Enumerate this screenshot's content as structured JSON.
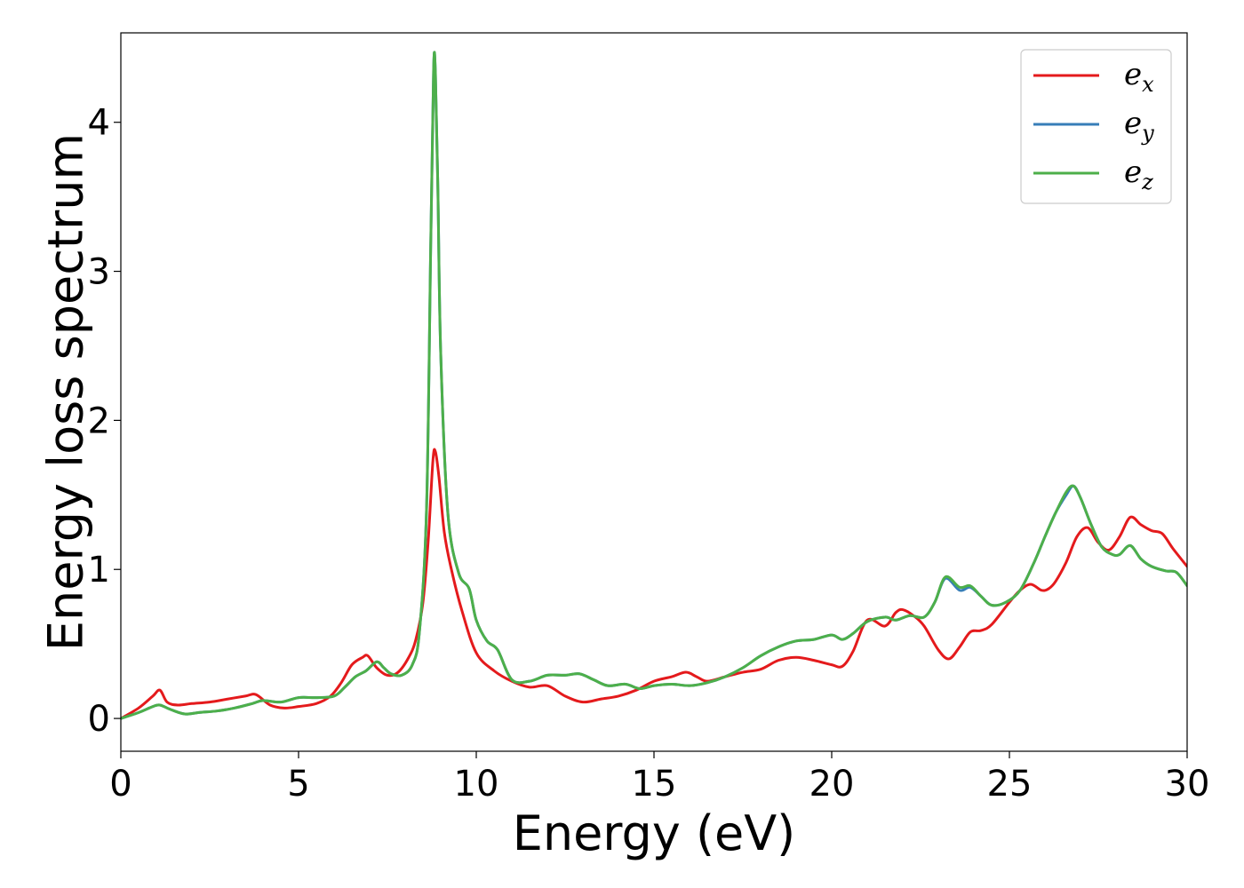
{
  "chart_data": {
    "type": "line",
    "title": "",
    "xlabel": "Energy (eV)",
    "ylabel": "Energy loss spectrum",
    "xlim": [
      0,
      30
    ],
    "ylim": [
      -0.22,
      4.6
    ],
    "xticks": [
      0,
      5,
      10,
      15,
      20,
      25,
      30
    ],
    "yticks": [
      0,
      1,
      2,
      3,
      4
    ],
    "grid": false,
    "legend_position": "top-right",
    "series": [
      {
        "name": "e_x",
        "legend": {
          "base": "e",
          "sub": "x"
        },
        "color": "#e41a1c",
        "x": [
          0,
          0.5,
          0.9,
          1.1,
          1.3,
          1.6,
          2.0,
          2.5,
          3.0,
          3.5,
          3.8,
          4.2,
          4.6,
          5.0,
          5.5,
          5.9,
          6.2,
          6.5,
          6.8,
          6.95,
          7.2,
          7.5,
          7.8,
          8.1,
          8.3,
          8.5,
          8.65,
          8.78,
          8.85,
          8.95,
          9.1,
          9.3,
          9.6,
          10.0,
          10.5,
          11.0,
          11.5,
          12.0,
          12.5,
          13.0,
          13.5,
          14.0,
          14.5,
          15.0,
          15.5,
          15.9,
          16.2,
          16.5,
          17.0,
          17.5,
          18.0,
          18.5,
          19.0,
          19.5,
          20.0,
          20.3,
          20.6,
          21.0,
          21.5,
          21.8,
          22.0,
          22.3,
          22.6,
          23.0,
          23.3,
          23.6,
          23.9,
          24.2,
          24.5,
          25.0,
          25.3,
          25.6,
          25.9,
          26.1,
          26.3,
          26.6,
          26.9,
          27.2,
          27.5,
          27.8,
          28.1,
          28.4,
          28.7,
          29.0,
          29.3,
          29.6,
          30.0
        ],
        "y": [
          0.0,
          0.07,
          0.15,
          0.19,
          0.11,
          0.09,
          0.1,
          0.11,
          0.13,
          0.15,
          0.16,
          0.09,
          0.07,
          0.08,
          0.1,
          0.15,
          0.24,
          0.36,
          0.41,
          0.42,
          0.34,
          0.29,
          0.31,
          0.41,
          0.53,
          0.78,
          1.2,
          1.73,
          1.79,
          1.62,
          1.25,
          1.0,
          0.72,
          0.44,
          0.32,
          0.25,
          0.21,
          0.22,
          0.15,
          0.11,
          0.13,
          0.15,
          0.19,
          0.25,
          0.28,
          0.31,
          0.28,
          0.25,
          0.28,
          0.31,
          0.33,
          0.39,
          0.41,
          0.39,
          0.36,
          0.35,
          0.45,
          0.66,
          0.62,
          0.71,
          0.73,
          0.69,
          0.62,
          0.46,
          0.4,
          0.48,
          0.58,
          0.59,
          0.63,
          0.78,
          0.86,
          0.9,
          0.86,
          0.87,
          0.92,
          1.05,
          1.22,
          1.28,
          1.18,
          1.13,
          1.22,
          1.35,
          1.3,
          1.26,
          1.24,
          1.14,
          1.02
        ]
      },
      {
        "name": "e_y",
        "legend": {
          "base": "e",
          "sub": "y"
        },
        "color": "#377eb8",
        "x": [
          0,
          0.5,
          0.9,
          1.1,
          1.4,
          1.8,
          2.2,
          2.7,
          3.2,
          3.7,
          4.0,
          4.5,
          5.0,
          5.5,
          6.0,
          6.3,
          6.6,
          6.9,
          7.2,
          7.4,
          7.6,
          7.9,
          8.2,
          8.4,
          8.6,
          8.72,
          8.8,
          8.85,
          8.92,
          9.0,
          9.2,
          9.5,
          9.8,
          10.0,
          10.3,
          10.6,
          11.0,
          11.5,
          12.0,
          12.5,
          12.9,
          13.3,
          13.7,
          14.2,
          14.6,
          15.0,
          15.5,
          16.0,
          16.5,
          17.0,
          17.5,
          18.0,
          18.5,
          19.0,
          19.5,
          20.0,
          20.3,
          20.6,
          21.0,
          21.5,
          21.8,
          22.2,
          22.6,
          22.9,
          23.2,
          23.6,
          23.9,
          24.2,
          24.5,
          24.9,
          25.3,
          25.7,
          26.0,
          26.3,
          26.6,
          26.8,
          27.0,
          27.3,
          27.6,
          27.9,
          28.1,
          28.4,
          28.7,
          29.0,
          29.4,
          29.7,
          30.0
        ],
        "y": [
          0.0,
          0.04,
          0.08,
          0.09,
          0.06,
          0.03,
          0.04,
          0.05,
          0.07,
          0.1,
          0.12,
          0.11,
          0.14,
          0.14,
          0.15,
          0.21,
          0.28,
          0.32,
          0.38,
          0.34,
          0.3,
          0.29,
          0.36,
          0.58,
          1.4,
          3.2,
          4.36,
          4.33,
          3.55,
          2.45,
          1.38,
          0.98,
          0.87,
          0.66,
          0.52,
          0.46,
          0.26,
          0.25,
          0.29,
          0.29,
          0.3,
          0.26,
          0.22,
          0.23,
          0.2,
          0.22,
          0.23,
          0.22,
          0.24,
          0.28,
          0.34,
          0.42,
          0.48,
          0.52,
          0.53,
          0.56,
          0.53,
          0.57,
          0.65,
          0.68,
          0.66,
          0.69,
          0.68,
          0.78,
          0.94,
          0.86,
          0.88,
          0.82,
          0.76,
          0.78,
          0.86,
          1.05,
          1.22,
          1.38,
          1.5,
          1.56,
          1.48,
          1.3,
          1.15,
          1.1,
          1.1,
          1.16,
          1.07,
          1.02,
          0.99,
          0.98,
          0.89
        ]
      },
      {
        "name": "e_z",
        "legend": {
          "base": "e",
          "sub": "z"
        },
        "color": "#4daf4a",
        "x": [
          0,
          0.5,
          0.9,
          1.1,
          1.4,
          1.8,
          2.2,
          2.7,
          3.2,
          3.7,
          4.0,
          4.5,
          5.0,
          5.5,
          6.0,
          6.3,
          6.6,
          6.9,
          7.2,
          7.4,
          7.6,
          7.9,
          8.2,
          8.4,
          8.6,
          8.72,
          8.8,
          8.85,
          8.92,
          9.0,
          9.2,
          9.5,
          9.8,
          10.0,
          10.3,
          10.6,
          11.0,
          11.5,
          12.0,
          12.5,
          12.9,
          13.3,
          13.7,
          14.2,
          14.6,
          15.0,
          15.5,
          16.0,
          16.5,
          17.0,
          17.5,
          18.0,
          18.5,
          19.0,
          19.5,
          20.0,
          20.3,
          20.6,
          21.0,
          21.5,
          21.8,
          22.2,
          22.6,
          22.9,
          23.2,
          23.6,
          23.9,
          24.2,
          24.5,
          24.9,
          25.3,
          25.7,
          26.0,
          26.3,
          26.6,
          26.8,
          27.0,
          27.3,
          27.6,
          27.9,
          28.1,
          28.4,
          28.7,
          29.0,
          29.4,
          29.7,
          30.0
        ],
        "y": [
          0.0,
          0.04,
          0.08,
          0.09,
          0.06,
          0.03,
          0.04,
          0.05,
          0.07,
          0.1,
          0.12,
          0.11,
          0.14,
          0.14,
          0.15,
          0.21,
          0.28,
          0.32,
          0.38,
          0.34,
          0.3,
          0.29,
          0.36,
          0.58,
          1.4,
          3.2,
          4.36,
          4.33,
          3.55,
          2.45,
          1.38,
          0.98,
          0.87,
          0.66,
          0.52,
          0.46,
          0.26,
          0.25,
          0.29,
          0.29,
          0.3,
          0.26,
          0.22,
          0.23,
          0.2,
          0.22,
          0.23,
          0.22,
          0.24,
          0.28,
          0.34,
          0.42,
          0.48,
          0.52,
          0.53,
          0.56,
          0.53,
          0.57,
          0.65,
          0.68,
          0.66,
          0.69,
          0.68,
          0.78,
          0.95,
          0.88,
          0.89,
          0.82,
          0.76,
          0.78,
          0.86,
          1.05,
          1.22,
          1.38,
          1.52,
          1.56,
          1.48,
          1.3,
          1.15,
          1.1,
          1.1,
          1.16,
          1.07,
          1.02,
          0.99,
          0.98,
          0.89
        ]
      }
    ]
  }
}
